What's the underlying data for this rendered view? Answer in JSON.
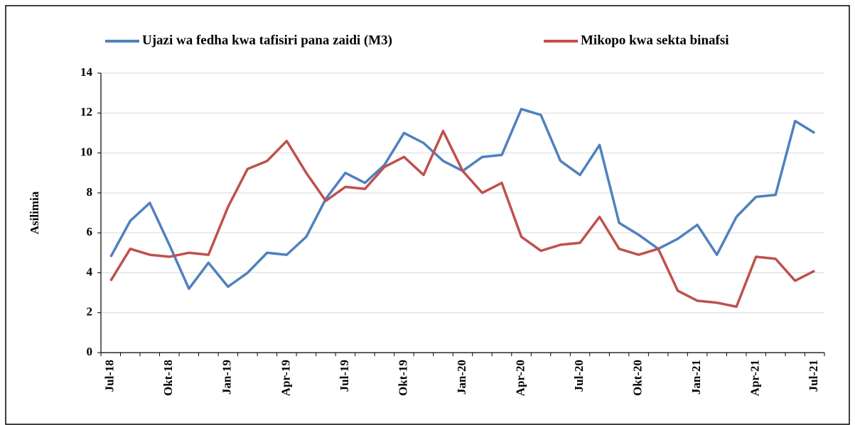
{
  "chart_data": {
    "type": "line",
    "y_label": "Asilimia",
    "categories": [
      "Jul-18",
      null,
      null,
      "Okt-18",
      null,
      null,
      "Jan-19",
      null,
      null,
      "Apr-19",
      null,
      null,
      "Jul-19",
      null,
      null,
      "Okt-19",
      null,
      null,
      "Jan-20",
      null,
      null,
      "Apr-20",
      null,
      null,
      "Jul-20",
      null,
      null,
      "Okt-20",
      null,
      null,
      "Jan-21",
      null,
      null,
      "Apr-21",
      null,
      null,
      "Jul-21"
    ],
    "series": [
      {
        "name": "Ujazi wa fedha kwa tafisiri pana zaidi (M3)",
        "color": "#4f81bd",
        "values": [
          4.8,
          6.6,
          7.5,
          5.4,
          3.2,
          4.5,
          3.3,
          4.0,
          5.0,
          4.9,
          5.8,
          7.7,
          9.0,
          8.5,
          9.4,
          11.0,
          10.5,
          9.6,
          9.1,
          9.8,
          9.9,
          12.2,
          11.9,
          9.6,
          8.9,
          10.4,
          6.5,
          5.9,
          5.2,
          5.7,
          6.4,
          4.9,
          6.8,
          7.8,
          7.9,
          11.6,
          11.0
        ]
      },
      {
        "name": "Mikopo kwa sekta binafsi",
        "color": "#c0504d",
        "values": [
          3.6,
          5.2,
          4.9,
          4.8,
          5.0,
          4.9,
          7.3,
          9.2,
          9.6,
          10.6,
          9.0,
          7.6,
          8.3,
          8.2,
          9.3,
          9.8,
          8.9,
          11.1,
          9.1,
          8.0,
          8.5,
          5.8,
          5.1,
          5.4,
          5.5,
          6.8,
          5.2,
          4.9,
          5.2,
          3.1,
          2.6,
          2.5,
          2.3,
          4.8,
          4.7,
          3.6,
          4.1
        ]
      }
    ],
    "ylim": [
      0,
      14
    ],
    "yticks": [
      0,
      2,
      4,
      6,
      8,
      10,
      12,
      14
    ],
    "grid": true,
    "legend": "top"
  }
}
